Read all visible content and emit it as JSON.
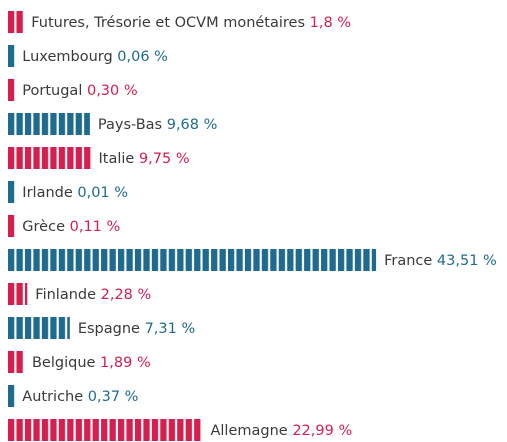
{
  "chart_data": {
    "type": "bar",
    "orientation": "horizontal",
    "categories": [
      "Futures, Trésorie et OCVM monétaires",
      "Luxembourg",
      "Portugal",
      "Pays-Bas",
      "Italie",
      "Irlande",
      "Grèce",
      "France",
      "Finlande",
      "Espagne",
      "Belgique",
      "Autriche",
      "Allemagne"
    ],
    "values": [
      1.8,
      0.06,
      0.3,
      9.68,
      9.75,
      0.01,
      0.11,
      43.51,
      2.28,
      7.31,
      1.89,
      0.37,
      22.99
    ],
    "value_labels": [
      "1,8 %",
      "0,06 %",
      "0,30 %",
      "9,68 %",
      "9,75 %",
      "0,01 %",
      "0,11 %",
      "43,51 %",
      "2,28 %",
      "7,31 %",
      "1,89 %",
      "0,37 %",
      "22,99 %"
    ],
    "colors": [
      "#d41f4f",
      "#1f6b8e",
      "#d41f4f",
      "#1f6b8e",
      "#d41f4f",
      "#1f6b8e",
      "#d41f4f",
      "#1f6b8e",
      "#d41f4f",
      "#1f6b8e",
      "#d41f4f",
      "#1f6b8e",
      "#d41f4f"
    ]
  }
}
